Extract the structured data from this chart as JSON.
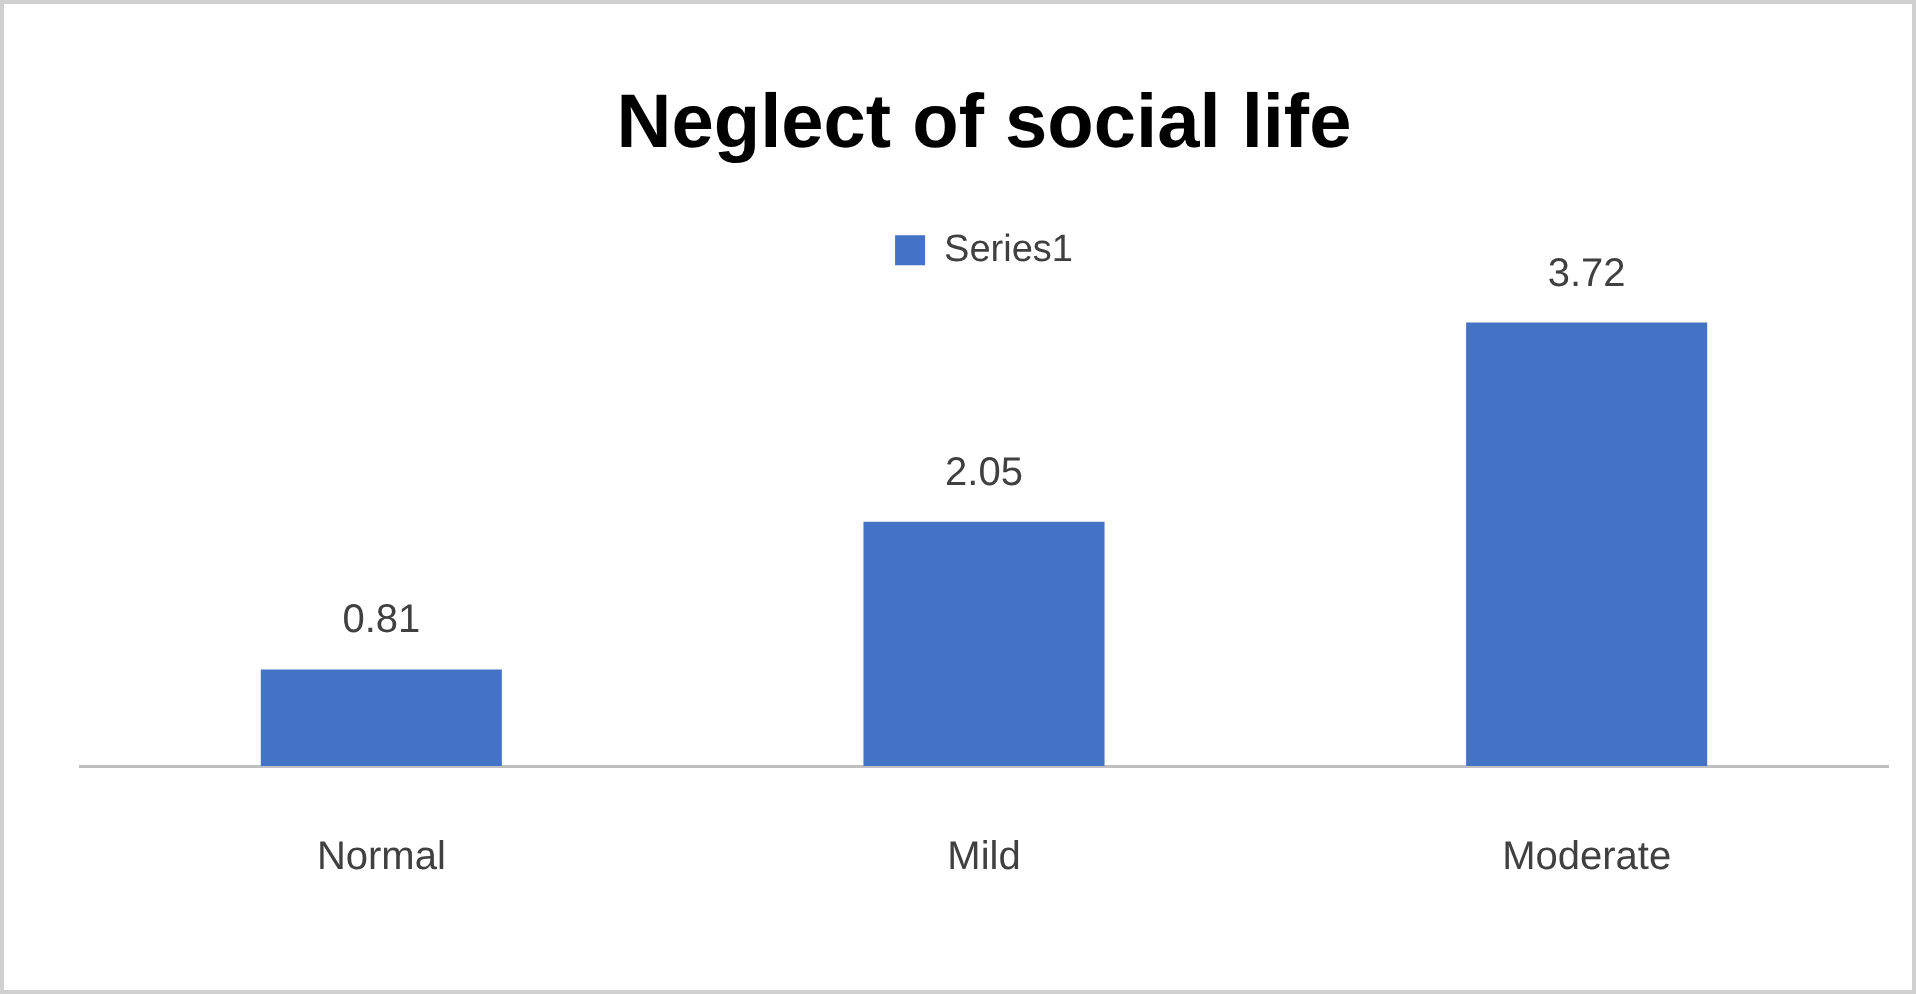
{
  "chart_data": {
    "type": "bar",
    "title": "Neglect of social life",
    "categories": [
      "Normal",
      "Mild",
      "Moderate"
    ],
    "series": [
      {
        "name": "Series1",
        "color": "#4472c4",
        "values": [
          0.81,
          2.05,
          3.72
        ]
      }
    ],
    "data_labels": true,
    "grid": false,
    "legend": "top"
  }
}
